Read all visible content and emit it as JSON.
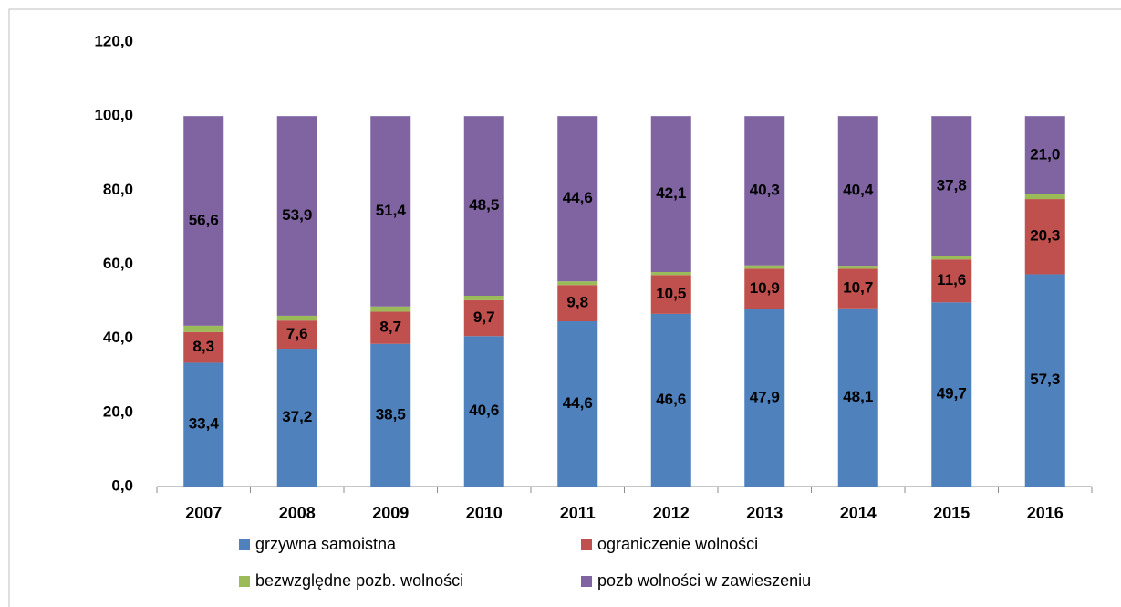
{
  "chart_data": {
    "type": "stacked-bar",
    "categories": [
      "2007",
      "2008",
      "2009",
      "2010",
      "2011",
      "2012",
      "2013",
      "2014",
      "2015",
      "2016"
    ],
    "series": [
      {
        "name": "grzywna samoistna",
        "color": "#4f81bd",
        "values": [
          33.4,
          37.2,
          38.5,
          40.6,
          44.6,
          46.6,
          47.9,
          48.1,
          49.7,
          57.3
        ],
        "value_labels": [
          "33,4",
          "37,2",
          "38,5",
          "40,6",
          "44,6",
          "46,6",
          "47,9",
          "48,1",
          "49,7",
          "57,3"
        ]
      },
      {
        "name": "ograniczenie wolności",
        "color": "#c0504d",
        "values": [
          8.3,
          7.6,
          8.7,
          9.7,
          9.8,
          10.5,
          10.9,
          10.7,
          11.6,
          20.3
        ],
        "value_labels": [
          "8,3",
          "7,6",
          "8,7",
          "9,7",
          "9,8",
          "10,5",
          "10,9",
          "10,7",
          "11,6",
          "20,3"
        ]
      },
      {
        "name": "bezwzględne pozb. wolności",
        "color": "#9bbb59",
        "values": [
          1.7,
          1.3,
          1.4,
          1.2,
          1.0,
          0.8,
          0.9,
          0.8,
          0.9,
          1.4
        ]
      },
      {
        "name": "pozb wolności w zawieszeniu",
        "color": "#8064a2",
        "values": [
          56.6,
          53.9,
          51.4,
          48.5,
          44.6,
          42.1,
          40.3,
          40.4,
          37.8,
          21.0
        ],
        "value_labels": [
          "56,6",
          "53,9",
          "51,4",
          "48,5",
          "44,6",
          "42,1",
          "40,3",
          "40,4",
          "37,8",
          "21,0"
        ]
      }
    ],
    "ylim": [
      0,
      120
    ],
    "yticks": [
      {
        "value": 0,
        "label": "0,0"
      },
      {
        "value": 20,
        "label": "20,0"
      },
      {
        "value": 40,
        "label": "40,0"
      },
      {
        "value": 60,
        "label": "60,0"
      },
      {
        "value": 80,
        "label": "80,0"
      },
      {
        "value": 100,
        "label": "100,0"
      },
      {
        "value": 120,
        "label": "120,0"
      }
    ],
    "grid": false
  }
}
